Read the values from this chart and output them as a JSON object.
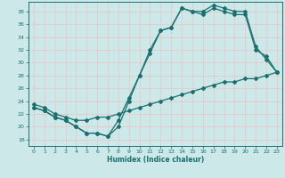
{
  "xlabel": "Humidex (Indice chaleur)",
  "ylabel": "",
  "xlim": [
    -0.5,
    23.5
  ],
  "ylim": [
    17,
    39.5
  ],
  "yticks": [
    18,
    20,
    22,
    24,
    26,
    28,
    30,
    32,
    34,
    36,
    38
  ],
  "xticks": [
    0,
    1,
    2,
    3,
    4,
    5,
    6,
    7,
    8,
    9,
    10,
    11,
    12,
    13,
    14,
    15,
    16,
    17,
    18,
    19,
    20,
    21,
    22,
    23
  ],
  "bg_color": "#cce8e8",
  "grid_color": "#e8c8c8",
  "line_color": "#1a7070",
  "line1_x": [
    0,
    1,
    2,
    3,
    4,
    5,
    6,
    7,
    8,
    9,
    10,
    11,
    12,
    13,
    14,
    15,
    16,
    17,
    18,
    19,
    20,
    21,
    22,
    23
  ],
  "line1_y": [
    23.5,
    23.0,
    22.0,
    21.5,
    21.0,
    21.0,
    21.5,
    21.5,
    22.0,
    22.5,
    23.0,
    23.5,
    24.0,
    24.5,
    25.0,
    25.5,
    26.0,
    26.5,
    27.0,
    27.0,
    27.5,
    27.5,
    28.0,
    28.5
  ],
  "line2_x": [
    0,
    1,
    2,
    3,
    4,
    5,
    6,
    7,
    8,
    9,
    10,
    11,
    12,
    13,
    14,
    15,
    16,
    17,
    18,
    19,
    20,
    21,
    22,
    23
  ],
  "line2_y": [
    23.0,
    22.5,
    21.5,
    21.0,
    20.0,
    19.0,
    19.0,
    18.5,
    21.0,
    24.5,
    28.0,
    31.5,
    35.0,
    35.5,
    38.5,
    38.0,
    38.0,
    39.0,
    38.5,
    38.0,
    38.0,
    32.5,
    30.5,
    28.5
  ],
  "line3_x": [
    0,
    1,
    2,
    3,
    4,
    5,
    6,
    7,
    8,
    9,
    10,
    11,
    12,
    13,
    14,
    15,
    16,
    17,
    18,
    19,
    20,
    21,
    22,
    23
  ],
  "line3_y": [
    23.0,
    22.5,
    21.5,
    21.0,
    20.0,
    19.0,
    19.0,
    18.5,
    20.0,
    24.0,
    28.0,
    32.0,
    35.0,
    35.5,
    38.5,
    38.0,
    37.5,
    38.5,
    38.0,
    37.5,
    37.5,
    32.0,
    31.0,
    28.5
  ]
}
